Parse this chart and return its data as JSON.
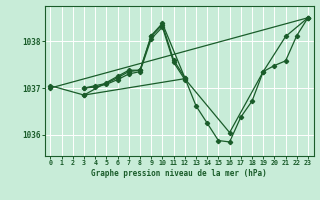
{
  "bg_color": "#c8ecd8",
  "grid_color": "#ffffff",
  "line_color": "#1a5c2a",
  "title": "Graphe pression niveau de la mer (hPa)",
  "xlim": [
    -0.5,
    23.5
  ],
  "ylim": [
    1035.55,
    1038.75
  ],
  "yticks": [
    1036,
    1037,
    1038
  ],
  "xticks": [
    0,
    1,
    2,
    3,
    4,
    5,
    6,
    7,
    8,
    9,
    10,
    11,
    12,
    13,
    14,
    15,
    16,
    17,
    18,
    19,
    20,
    21,
    22,
    23
  ],
  "series": [
    {
      "x": [
        0,
        3,
        12,
        16,
        19,
        21,
        23
      ],
      "y": [
        1037.05,
        1036.85,
        1037.2,
        1036.05,
        1037.35,
        1038.1,
        1038.5
      ]
    },
    {
      "x": [
        3,
        6,
        7,
        8,
        9,
        10,
        12,
        13,
        14,
        15,
        16,
        17,
        18,
        19,
        20,
        21,
        22,
        23
      ],
      "y": [
        1036.85,
        1037.25,
        1037.38,
        1037.38,
        1038.12,
        1038.38,
        1037.22,
        1036.62,
        1036.25,
        1035.88,
        1035.85,
        1036.38,
        1036.72,
        1037.35,
        1037.48,
        1037.58,
        1038.12,
        1038.5
      ]
    },
    {
      "x": [
        3,
        4,
        5,
        6,
        7,
        8,
        9,
        10,
        11,
        12
      ],
      "y": [
        1037.0,
        1037.05,
        1037.1,
        1037.22,
        1037.35,
        1037.38,
        1038.1,
        1038.35,
        1037.6,
        1037.22
      ]
    },
    {
      "x": [
        3,
        4,
        5,
        6,
        7,
        8,
        9,
        10,
        11,
        12
      ],
      "y": [
        1037.0,
        1037.02,
        1037.08,
        1037.18,
        1037.3,
        1037.35,
        1038.05,
        1038.3,
        1037.55,
        1037.18
      ]
    },
    {
      "x": [
        0,
        23
      ],
      "y": [
        1037.0,
        1038.5
      ]
    }
  ]
}
